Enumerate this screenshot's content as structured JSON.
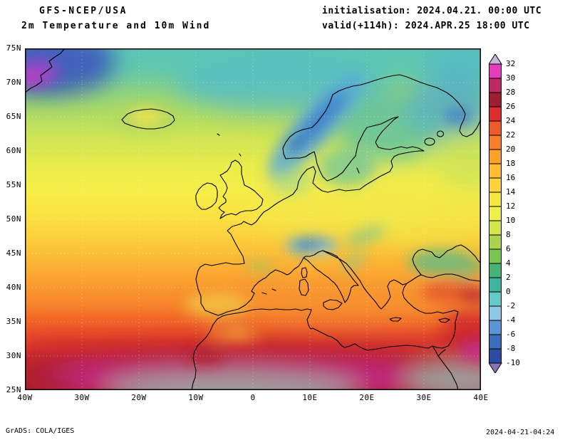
{
  "header": {
    "model": "GFS-NCEP/USA",
    "product": "2m Temperature and 10m Wind",
    "init": "initialisation: 2024.04.21. 00:00 UTC",
    "valid": "valid(+114h): 2024.APR.25 18:00 UTC"
  },
  "axes": {
    "lat_ticks": [
      "75N",
      "70N",
      "65N",
      "60N",
      "55N",
      "50N",
      "45N",
      "40N",
      "35N",
      "30N",
      "25N"
    ],
    "lon_ticks": [
      "40W",
      "30W",
      "20W",
      "10W",
      "0",
      "10E",
      "20E",
      "30E",
      "40E"
    ]
  },
  "colorbar": {
    "ticks": [
      "32",
      "30",
      "28",
      "26",
      "24",
      "22",
      "20",
      "18",
      "16",
      "14",
      "12",
      "10",
      "8",
      "6",
      "4",
      "2",
      "0",
      "-2",
      "-4",
      "-6",
      "-8",
      "-10"
    ],
    "colors": [
      "#e83cc0",
      "#c02868",
      "#a01e32",
      "#dc2e2e",
      "#f05a28",
      "#fa7d28",
      "#ffa028",
      "#ffbe32",
      "#ffd23c",
      "#f5e642",
      "#eef04a",
      "#d2e64c",
      "#aad450",
      "#78c850",
      "#46b478",
      "#3cb4a0",
      "#64ccc8",
      "#8cc8e6",
      "#5a96d7",
      "#3c6ec0",
      "#2c4ba5"
    ],
    "triangle_top": "#c6b4d0",
    "triangle_bottom": "#8f6fb8"
  },
  "footer": {
    "credit": "GrADS: COLA/IGES",
    "timestamp": "2024-04-21-04:24"
  }
}
